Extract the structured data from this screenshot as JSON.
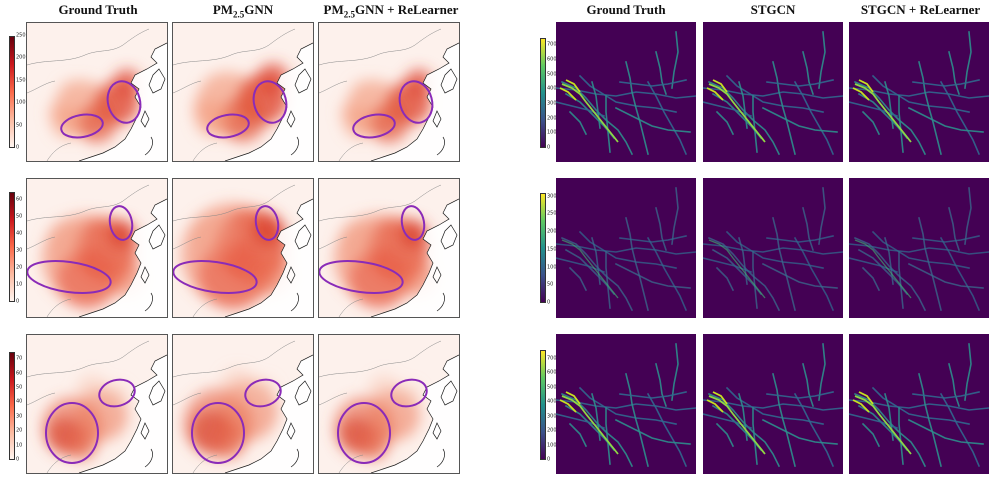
{
  "left_figure": {
    "columns": [
      {
        "text": "Ground Truth",
        "sub": "",
        "suffix": ""
      },
      {
        "text": "PM",
        "sub": "2.5",
        "suffix": "GNN"
      },
      {
        "text": "PM",
        "sub": "2.5",
        "suffix": "GNN + ReLearner"
      }
    ],
    "colorbars": [
      {
        "ticks": [
          "250",
          "200",
          "150",
          "100",
          "50",
          "0"
        ],
        "min": 0,
        "max": 250
      },
      {
        "ticks": [
          "60",
          "50",
          "40",
          "30",
          "20",
          "10",
          "0"
        ],
        "min": 0,
        "max": 65
      },
      {
        "ticks": [
          "70",
          "60",
          "50",
          "40",
          "30",
          "20",
          "10",
          "0"
        ],
        "min": 0,
        "max": 75
      }
    ],
    "colormap": "Reds",
    "highlight_color": "#8a2bb8"
  },
  "right_figure": {
    "columns": [
      {
        "text": "Ground Truth"
      },
      {
        "text": "STGCN"
      },
      {
        "text": "STGCN + ReLearner"
      }
    ],
    "colorbars": [
      {
        "ticks": [
          "700",
          "600",
          "500",
          "400",
          "300",
          "200",
          "100",
          "0"
        ],
        "min": 0,
        "max": 750
      },
      {
        "ticks": [
          "300",
          "250",
          "200",
          "150",
          "100",
          "50",
          "0"
        ],
        "min": 0,
        "max": 310
      },
      {
        "ticks": [
          "700",
          "600",
          "500",
          "400",
          "300",
          "200",
          "100",
          "0"
        ],
        "min": 0,
        "max": 760
      }
    ],
    "colormap": "viridis",
    "background_color": "#440154"
  }
}
